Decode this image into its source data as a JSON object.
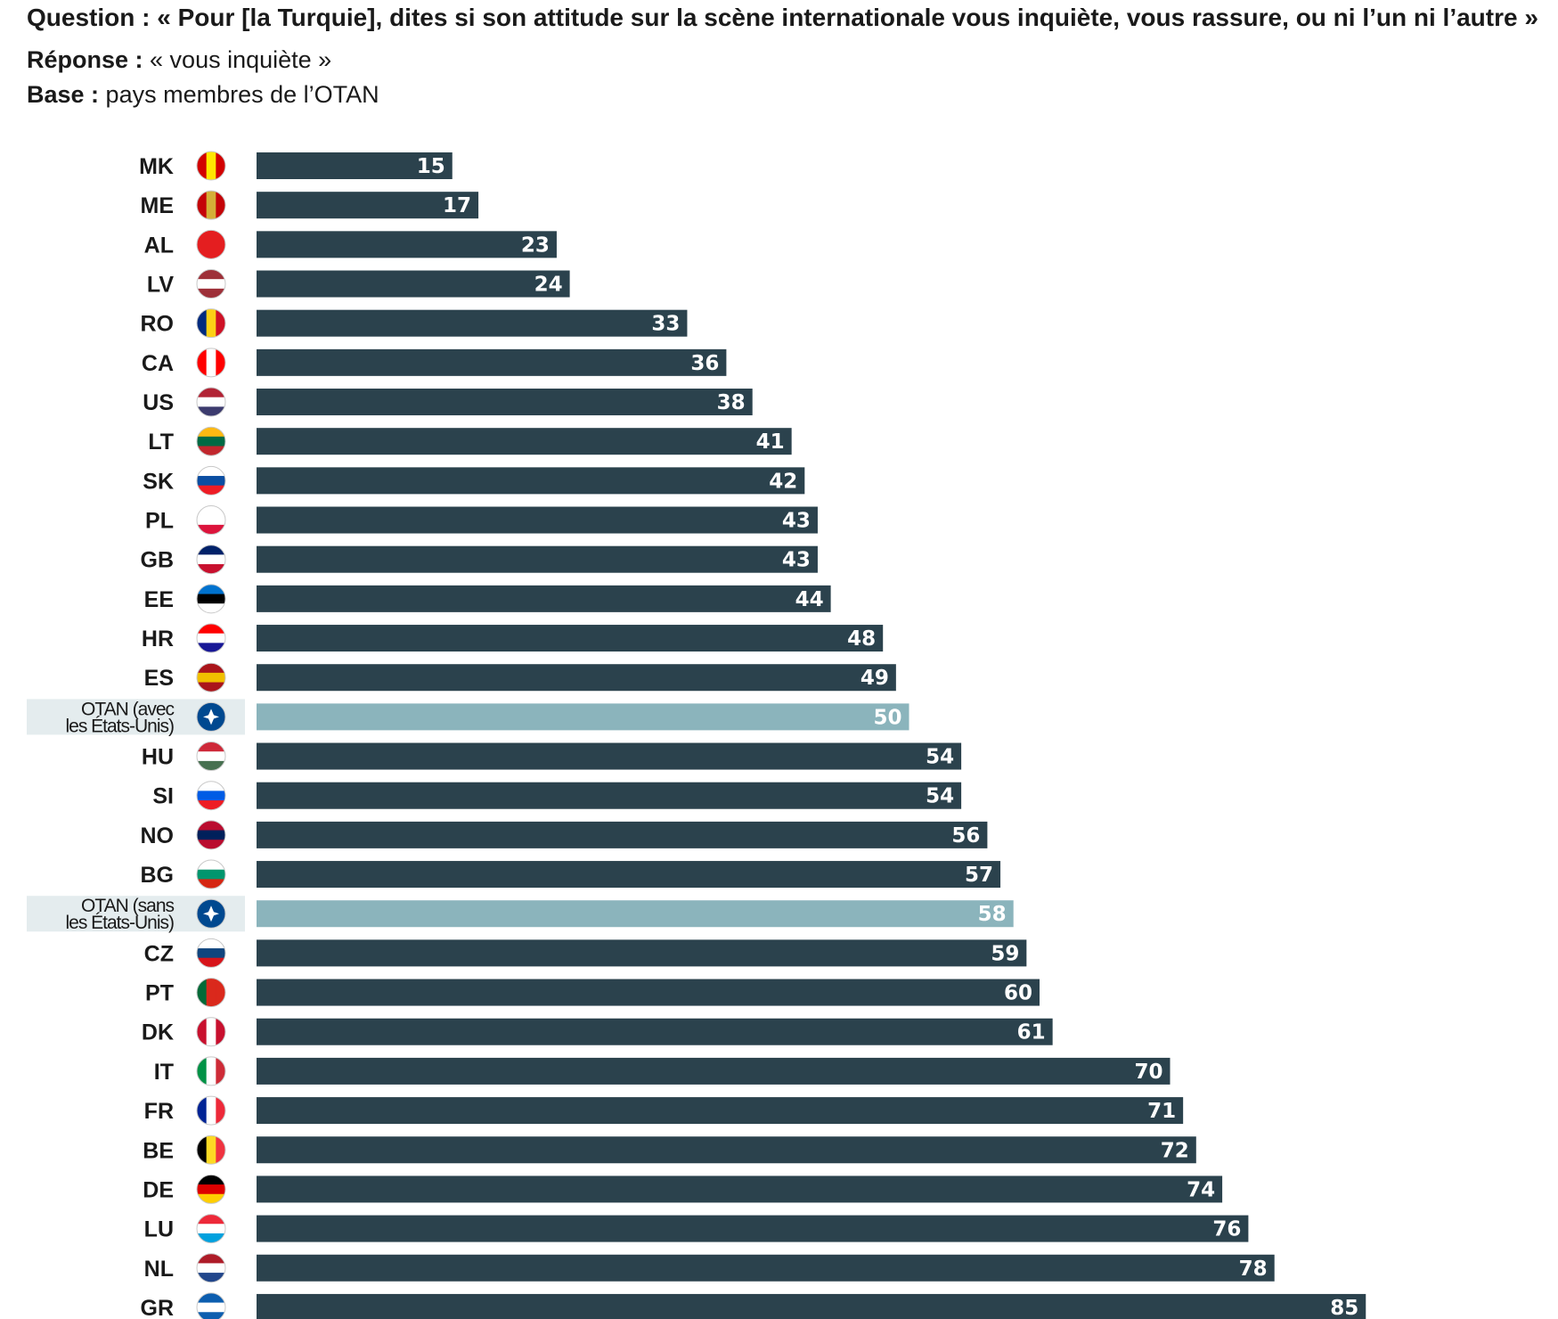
{
  "header": {
    "question_label": "Question :",
    "question_text": " « Pour [la Turquie], dites si son attitude sur la scène internationale vous inquiète, vous rassure, ou ni l’un ni l’autre »",
    "response_label": "Réponse :",
    "response_text": " « vous inquiète »",
    "base_label": "Base :",
    "base_text": " pays membres de l’OTAN"
  },
  "colors": {
    "bar": "#2b424d",
    "bar_highlight": "#8bb4bc",
    "label_highlight_bg": "#e4ecee"
  },
  "chart_data": {
    "type": "bar",
    "orientation": "horizontal",
    "xlim": [
      0,
      100
    ],
    "categories": [
      "MK",
      "ME",
      "AL",
      "LV",
      "RO",
      "CA",
      "US",
      "LT",
      "SK",
      "PL",
      "GB",
      "EE",
      "HR",
      "ES",
      "OTAN (avec les États-Unis)",
      "HU",
      "SI",
      "NO",
      "BG",
      "OTAN (sans les États-Unis)",
      "CZ",
      "PT",
      "DK",
      "IT",
      "FR",
      "BE",
      "DE",
      "LU",
      "NL",
      "GR"
    ],
    "label_lines": [
      [
        "MK"
      ],
      [
        "ME"
      ],
      [
        "AL"
      ],
      [
        "LV"
      ],
      [
        "RO"
      ],
      [
        "CA"
      ],
      [
        "US"
      ],
      [
        "LT"
      ],
      [
        "SK"
      ],
      [
        "PL"
      ],
      [
        "GB"
      ],
      [
        "EE"
      ],
      [
        "HR"
      ],
      [
        "ES"
      ],
      [
        "OTAN (avec",
        "les États-Unis)"
      ],
      [
        "HU"
      ],
      [
        "SI"
      ],
      [
        "NO"
      ],
      [
        "BG"
      ],
      [
        "OTAN (sans",
        "les États-Unis)"
      ],
      [
        "CZ"
      ],
      [
        "PT"
      ],
      [
        "DK"
      ],
      [
        "IT"
      ],
      [
        "FR"
      ],
      [
        "BE"
      ],
      [
        "DE"
      ],
      [
        "LU"
      ],
      [
        "NL"
      ],
      [
        "GR"
      ]
    ],
    "values": [
      15,
      17,
      23,
      24,
      33,
      36,
      38,
      41,
      42,
      43,
      43,
      44,
      48,
      49,
      50,
      54,
      54,
      56,
      57,
      58,
      59,
      60,
      61,
      70,
      71,
      72,
      74,
      76,
      78,
      85
    ],
    "highlighted": [
      false,
      false,
      false,
      false,
      false,
      false,
      false,
      false,
      false,
      false,
      false,
      false,
      false,
      false,
      true,
      false,
      false,
      false,
      false,
      true,
      false,
      false,
      false,
      false,
      false,
      false,
      false,
      false,
      false,
      false
    ],
    "flag_icons": [
      "mk-flag-icon",
      "me-flag-icon",
      "al-flag-icon",
      "lv-flag-icon",
      "ro-flag-icon",
      "ca-flag-icon",
      "us-flag-icon",
      "lt-flag-icon",
      "sk-flag-icon",
      "pl-flag-icon",
      "gb-flag-icon",
      "ee-flag-icon",
      "hr-flag-icon",
      "es-flag-icon",
      "nato-flag-icon",
      "hu-flag-icon",
      "si-flag-icon",
      "no-flag-icon",
      "bg-flag-icon",
      "nato-flag-icon",
      "cz-flag-icon",
      "pt-flag-icon",
      "dk-flag-icon",
      "it-flag-icon",
      "fr-flag-icon",
      "be-flag-icon",
      "de-flag-icon",
      "lu-flag-icon",
      "nl-flag-icon",
      "gr-flag-icon"
    ],
    "flag_colors": [
      [
        "#d20000",
        "#ffe600",
        "#d20000"
      ],
      [
        "#c40308",
        "#d4af37",
        "#c40308"
      ],
      [
        "#e41e20",
        "#e41e20",
        "#e41e20"
      ],
      [
        "#9e3039",
        "#ffffff",
        "#9e3039"
      ],
      [
        "#002b7f",
        "#fcd116",
        "#ce1126"
      ],
      [
        "#ff0000",
        "#ffffff",
        "#ff0000"
      ],
      [
        "#b22234",
        "#ffffff",
        "#3c3b6e"
      ],
      [
        "#fdb913",
        "#006a44",
        "#c1272d"
      ],
      [
        "#ffffff",
        "#0b4ea2",
        "#ee1c25"
      ],
      [
        "#ffffff",
        "#ffffff",
        "#dc143c"
      ],
      [
        "#012169",
        "#ffffff",
        "#c8102e"
      ],
      [
        "#0072ce",
        "#000000",
        "#ffffff"
      ],
      [
        "#ff0000",
        "#ffffff",
        "#171796"
      ],
      [
        "#aa151b",
        "#f1bf00",
        "#aa151b"
      ],
      [
        "#004990",
        "#004990",
        "#004990"
      ],
      [
        "#ce2939",
        "#ffffff",
        "#477050"
      ],
      [
        "#ffffff",
        "#005ce5",
        "#ed1c24"
      ],
      [
        "#ba0c2f",
        "#00205b",
        "#ba0c2f"
      ],
      [
        "#ffffff",
        "#00966e",
        "#d62612"
      ],
      [
        "#004990",
        "#004990",
        "#004990"
      ],
      [
        "#ffffff",
        "#11457e",
        "#d7141a"
      ],
      [
        "#046a38",
        "#da291c",
        "#da291c"
      ],
      [
        "#c8102e",
        "#ffffff",
        "#c8102e"
      ],
      [
        "#009246",
        "#ffffff",
        "#ce2b37"
      ],
      [
        "#002395",
        "#ffffff",
        "#ed2939"
      ],
      [
        "#000000",
        "#fdda24",
        "#ef3340"
      ],
      [
        "#000000",
        "#dd0000",
        "#ffce00"
      ],
      [
        "#ed2939",
        "#ffffff",
        "#00a1de"
      ],
      [
        "#ae1c28",
        "#ffffff",
        "#21468b"
      ],
      [
        "#0d5eaf",
        "#ffffff",
        "#0d5eaf"
      ]
    ],
    "flag_layout": [
      "v",
      "v",
      "v",
      "h",
      "v",
      "v",
      "h",
      "h",
      "h",
      "h",
      "h",
      "h",
      "h",
      "h",
      "v",
      "h",
      "h",
      "h",
      "h",
      "v",
      "h",
      "v",
      "v",
      "v",
      "v",
      "v",
      "h",
      "h",
      "h",
      "h"
    ]
  }
}
